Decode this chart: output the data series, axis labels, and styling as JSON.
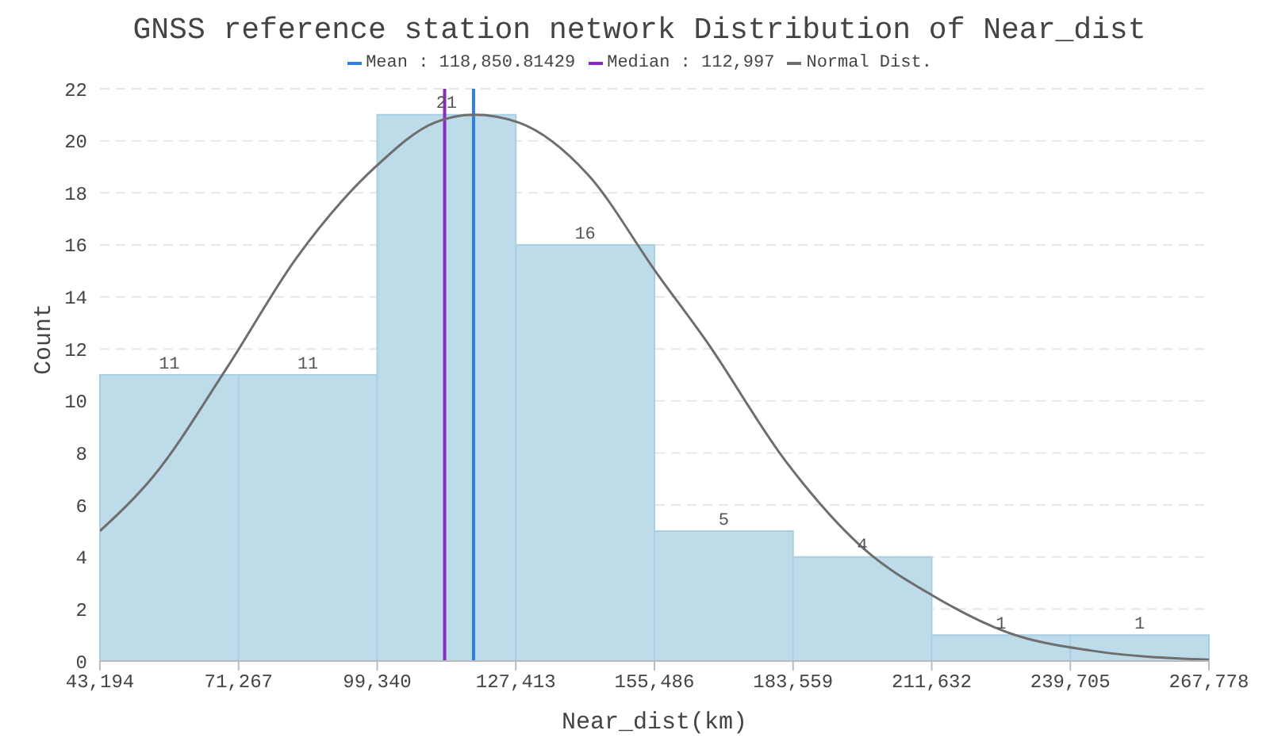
{
  "chart_data": {
    "type": "histogram",
    "title": "GNSS reference station network Distribution of Near_dist",
    "xlabel": "Near_dist(km)",
    "ylabel": "Count",
    "bins": [
      43194,
      71267,
      99340,
      127413,
      155486,
      183559,
      211632,
      239705,
      267778
    ],
    "values": [
      11,
      11,
      21,
      16,
      5,
      4,
      1,
      1
    ],
    "value_labels": [
      "11",
      "11",
      "21",
      "16",
      "5",
      "4",
      "1",
      "1"
    ],
    "color": "#bedbea",
    "series": [
      {
        "name": "Normal Dist.",
        "type": "line",
        "color": "#6e6e6e",
        "x": [
          43194,
          54000,
          69000,
          83000,
          99000,
          111000,
          119000,
          128000,
          142000,
          156000,
          166000,
          182000,
          198000,
          212000,
          227000,
          244000,
          267778
        ],
        "values": [
          5.0,
          7.1,
          11.3,
          15.5,
          19.0,
          20.7,
          21.0,
          20.7,
          18.7,
          14.9,
          12.3,
          7.7,
          4.3,
          2.5,
          1.1,
          0.4,
          0.05
        ]
      }
    ],
    "ref_lines": [
      {
        "axis": "x",
        "value": 118850.81429,
        "label": "Mean : 118,850.81429",
        "color": "#2f7fe0"
      },
      {
        "axis": "x",
        "value": 112997,
        "label": "Median : 112,997",
        "color": "#8a2bc0"
      }
    ],
    "xlim": [
      43194,
      267778
    ],
    "xticks": [
      {
        "value": 43194,
        "label": "43,194"
      },
      {
        "value": 71267,
        "label": "71,267"
      },
      {
        "value": 99340,
        "label": "99,340"
      },
      {
        "value": 127413,
        "label": "127,413"
      },
      {
        "value": 155486,
        "label": "155,486"
      },
      {
        "value": 183559,
        "label": "183,559"
      },
      {
        "value": 211632,
        "label": "211,632"
      },
      {
        "value": 239705,
        "label": "239,705"
      },
      {
        "value": 267778,
        "label": "267,778"
      }
    ],
    "ylim": [
      0,
      22
    ],
    "yticks": [
      0,
      2,
      4,
      6,
      8,
      10,
      12,
      14,
      16,
      18,
      20,
      22
    ],
    "grid": "y",
    "legend": "top",
    "line_style": "solid",
    "marker": "none"
  }
}
